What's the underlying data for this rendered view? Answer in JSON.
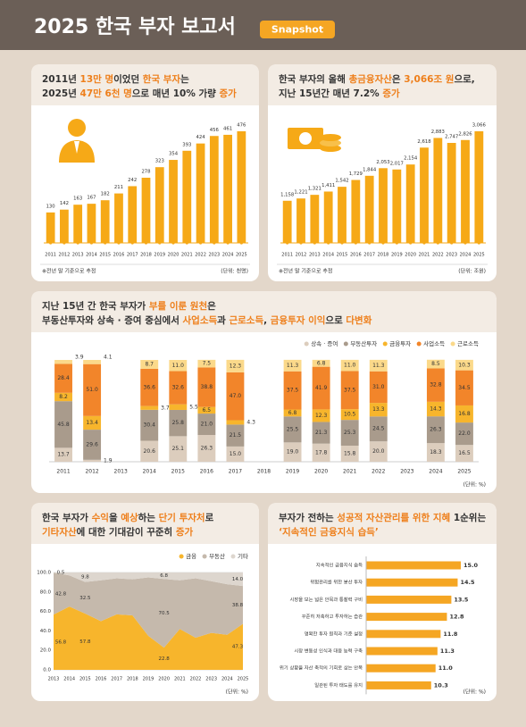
{
  "header": {
    "title": "2025 한국 부자 보고서",
    "badge": "Snapshot"
  },
  "highlight_color": "#ee7f1b",
  "chart_data": [
    {
      "type": "bar",
      "title_lines": [
        [
          {
            "text": "2011년 ",
            "hl": false
          },
          {
            "text": "13만 명",
            "hl": true
          },
          {
            "text": "이었던 ",
            "hl": false
          },
          {
            "text": "한국 부자",
            "hl": true
          },
          {
            "text": "는",
            "hl": false
          }
        ],
        [
          {
            "text": "2025년 ",
            "hl": false
          },
          {
            "text": "47만 6천 명",
            "hl": true
          },
          {
            "text": "으로 매년 10% 가량 ",
            "hl": false
          },
          {
            "text": "증가",
            "hl": true
          }
        ]
      ],
      "categories": [
        "2011",
        "2012",
        "2013",
        "2014",
        "2015",
        "2016",
        "2017",
        "2018",
        "2019",
        "2020",
        "2021",
        "2022",
        "2023",
        "2024",
        "2025"
      ],
      "values": [
        130,
        142,
        163,
        167,
        182,
        211,
        242,
        278,
        323,
        354,
        393,
        424,
        456,
        461,
        476
      ],
      "color": "#f6a917",
      "note": "※전년 말 기준으로 추정",
      "unit": "(단위: 천명)"
    },
    {
      "type": "bar",
      "title_lines": [
        [
          {
            "text": "한국 부자의 올해 ",
            "hl": false
          },
          {
            "text": "총금융자산",
            "hl": true
          },
          {
            "text": "은 ",
            "hl": false
          },
          {
            "text": "3,066조 원",
            "hl": true
          },
          {
            "text": "으로,",
            "hl": false
          }
        ],
        [
          {
            "text": "지난 15년간 매년 7.2% ",
            "hl": false
          },
          {
            "text": "증가",
            "hl": true
          }
        ]
      ],
      "categories": [
        "2011",
        "2012",
        "2013",
        "2014",
        "2015",
        "2016",
        "2017",
        "2018",
        "2019",
        "2020",
        "2021",
        "2022",
        "2023",
        "2024",
        "2025"
      ],
      "values": [
        1158,
        1221,
        1321,
        1411,
        1542,
        1729,
        1844,
        2053,
        2017,
        2154,
        2618,
        2883,
        2747,
        2826,
        3066
      ],
      "value_labels": [
        "1,158",
        "1,221",
        "1,321",
        "1,411",
        "1,542",
        "1,729",
        "1,844",
        "2,053",
        "2,017",
        "2,154",
        "2,618",
        "2,883",
        "2,747",
        "2,826",
        "3,066"
      ],
      "color": "#f6a917",
      "note": "※전년 말 기준으로 추정",
      "unit": "(단위: 조원)"
    },
    {
      "type": "stacked_bar",
      "title_lines": [
        [
          {
            "text": "지난 15년 간 한국 부자가 ",
            "hl": false
          },
          {
            "text": "부를 이룬 원천",
            "hl": true
          },
          {
            "text": "은",
            "hl": false
          }
        ],
        [
          {
            "text": "부동산투자와 상속 · 증여 중심에서 ",
            "hl": false
          },
          {
            "text": "사업소득",
            "hl": true
          },
          {
            "text": "과 ",
            "hl": false
          },
          {
            "text": "근로소득",
            "hl": true
          },
          {
            "text": ", ",
            "hl": false
          },
          {
            "text": "금융투자 이익",
            "hl": true
          },
          {
            "text": "으로 ",
            "hl": false
          },
          {
            "text": "다변화",
            "hl": true
          }
        ]
      ],
      "categories": [
        "2011",
        "2012",
        "2013",
        "2014",
        "2015",
        "2016",
        "2017",
        "2018",
        "2019",
        "2020",
        "2021",
        "2022",
        "2023",
        "2024",
        "2025"
      ],
      "ylim": [
        0,
        100
      ],
      "series": [
        {
          "name": "상속 · 증여",
          "color": "#dccdbd",
          "values": [
            13.7,
            1.9,
            null,
            20.6,
            25.1,
            26.3,
            15.0,
            null,
            19.0,
            17.8,
            15.8,
            20.0,
            null,
            18.3,
            16.5
          ],
          "value_labels": [
            "13.7",
            "1.9",
            null,
            "20.6",
            "25.1",
            "26.3",
            "15.0",
            null,
            "19.0",
            "17.8",
            "15.8",
            "20.0",
            null,
            "18.3",
            "16.5"
          ]
        },
        {
          "name": "부동산투자",
          "color": "#a99b8c",
          "values": [
            45.8,
            29.6,
            null,
            30.4,
            25.8,
            21.0,
            21.5,
            null,
            25.5,
            21.3,
            25.3,
            24.5,
            null,
            26.3,
            22.0
          ],
          "value_labels": [
            "45.8",
            "29.6",
            null,
            "30.4",
            "25.8",
            "21.0",
            "21.5",
            null,
            "25.5",
            "21.3",
            "25.3",
            "24.5",
            null,
            "26.3",
            "22.0"
          ]
        },
        {
          "name": "금융투자",
          "color": "#f7b52c",
          "values": [
            8.2,
            13.4,
            null,
            3.7,
            5.5,
            6.5,
            4.3,
            null,
            6.8,
            12.3,
            10.5,
            13.3,
            null,
            14.3,
            16.8
          ],
          "value_labels": [
            "8.2",
            "13.4",
            null,
            "3.7",
            "5.5",
            "6.5",
            "4.3",
            null,
            "6.8",
            "12.3",
            "10.5",
            "13.3",
            null,
            "14.3",
            "16.8"
          ]
        },
        {
          "name": "사업소득",
          "color": "#f2852a",
          "values": [
            28.4,
            51.0,
            null,
            36.6,
            32.6,
            38.8,
            47.0,
            null,
            37.5,
            41.9,
            37.5,
            31.0,
            null,
            32.8,
            34.5
          ],
          "value_labels": [
            "28.4",
            "51.0",
            null,
            "36.6",
            "32.6",
            "38.8",
            "47.0",
            null,
            "37.5",
            "41.9",
            "37.5",
            "31.0",
            null,
            "32.8",
            "34.5"
          ]
        },
        {
          "name": "근로소득",
          "color": "#fbd98a",
          "values": [
            3.9,
            4.1,
            null,
            8.7,
            11.0,
            7.5,
            12.3,
            null,
            11.3,
            6.8,
            11.0,
            11.3,
            null,
            8.5,
            10.3
          ],
          "value_labels": [
            "3.9",
            "4.1",
            null,
            "8.7",
            "11.0",
            "7.5",
            "12.3",
            null,
            "11.3",
            "6.8",
            "11.0",
            "11.3",
            null,
            "8.5",
            "10.3"
          ]
        }
      ],
      "unit": "(단위: %)"
    },
    {
      "type": "stacked_area",
      "title_lines": [
        [
          {
            "text": "한국 부자가 ",
            "hl": false
          },
          {
            "text": "수익",
            "hl": true
          },
          {
            "text": "을 ",
            "hl": false
          },
          {
            "text": "예상",
            "hl": true
          },
          {
            "text": "하는 ",
            "hl": false
          },
          {
            "text": "단기 투자처",
            "hl": true
          },
          {
            "text": "로",
            "hl": false
          }
        ],
        [
          {
            "text": "기타자산",
            "hl": true
          },
          {
            "text": "에 대한 기대감이 꾸준히 ",
            "hl": false
          },
          {
            "text": "증가",
            "hl": true
          }
        ]
      ],
      "categories": [
        "2013",
        "2014",
        "2015",
        "2016",
        "2017",
        "2018",
        "2019",
        "2020",
        "2021",
        "2022",
        "2023",
        "2024",
        "2025"
      ],
      "ylim": [
        0,
        100
      ],
      "yticks": [
        {
          "value": 0,
          "label": "0.0"
        },
        {
          "value": 20,
          "label": "20.0"
        },
        {
          "value": 40,
          "label": "40.0"
        },
        {
          "value": 60,
          "label": "60.0"
        },
        {
          "value": 80,
          "label": "80.0"
        },
        {
          "value": 100,
          "label": "100.0"
        }
      ],
      "series": [
        {
          "name": "금융",
          "color": "#f7b52c",
          "values": [
            56.8,
            65,
            57.8,
            50,
            57,
            56,
            35,
            22.8,
            42,
            33,
            38,
            36,
            47.3
          ],
          "value_labels": [
            "56.8",
            null,
            "57.8",
            null,
            null,
            null,
            null,
            "22.8",
            null,
            null,
            null,
            null,
            "47.3"
          ]
        },
        {
          "name": "부동산",
          "color": "#c5b9ac",
          "values": [
            42.8,
            32,
            32.5,
            42,
            37,
            37,
            60,
            70.5,
            50,
            61,
            53,
            52,
            38.8
          ],
          "value_labels": [
            "42.8",
            null,
            "32.5",
            null,
            null,
            null,
            null,
            "70.5",
            null,
            null,
            null,
            null,
            "38.8"
          ]
        },
        {
          "name": "기타",
          "color": "#ddd6ce",
          "values": [
            0.5,
            3,
            9.8,
            8,
            6,
            7,
            5,
            6.8,
            8,
            6,
            9,
            12,
            14.0
          ],
          "value_labels": [
            "0.5",
            null,
            "9.8",
            null,
            null,
            null,
            null,
            "6.8",
            null,
            null,
            null,
            null,
            "14.0"
          ]
        }
      ],
      "unit": "(단위: %)"
    },
    {
      "type": "hbar",
      "title_lines": [
        [
          {
            "text": "부자가 전하는 ",
            "hl": false
          },
          {
            "text": "성공적 자산관리를 위한 지혜",
            "hl": true
          },
          {
            "text": " 1순위는",
            "hl": false
          }
        ],
        [
          {
            "text": "‘지속적인 금융지식 습득’",
            "hl": true
          }
        ]
      ],
      "categories": [
        "지속적인 금융지식 습득",
        "위험관리를 위한 분산 투자",
        "시장을 보는 넓은 안목과 통찰력 구비",
        "꾸준히 저축하고 투자하는 습관",
        "명확한 투자 원칙과 기준 설정",
        "시장 변동성 인식과 대응 능력 구축",
        "위기 상황을 자산 축적의 기회로 삼는 안목",
        "일관된 투자 태도를 유지"
      ],
      "values": [
        15.0,
        14.5,
        13.5,
        12.8,
        11.8,
        11.3,
        11.0,
        10.3
      ],
      "value_labels": [
        "15.0",
        "14.5",
        "13.5",
        "12.8",
        "11.8",
        "11.3",
        "11.0",
        "10.3"
      ],
      "color": "#f5a623",
      "unit": "(단위: %)"
    }
  ]
}
